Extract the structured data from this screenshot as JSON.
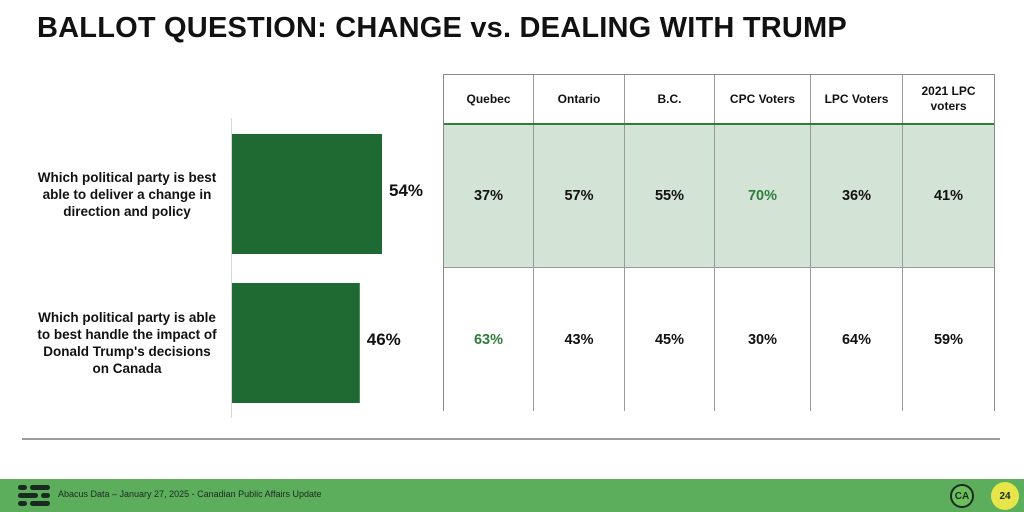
{
  "title": "BALLOT QUESTION: CHANGE vs. DEALING WITH TRUMP",
  "chart_data": {
    "type": "bar",
    "orientation": "horizontal",
    "categories": [
      "Which political party is best able to deliver a change in direction and policy",
      "Which political party is able to best handle the impact of Donald Trump's decisions on Canada"
    ],
    "values": [
      54,
      46
    ],
    "value_labels": [
      "54%",
      "46%"
    ],
    "bar_color": "#1f6a33",
    "xlim": [
      0,
      100
    ]
  },
  "table": {
    "headers": [
      "Quebec",
      "Ontario",
      "B.C.",
      "CPC Voters",
      "LPC Voters",
      "2021 LPC voters"
    ],
    "rows": [
      {
        "values": [
          "37%",
          "57%",
          "55%",
          "70%",
          "36%",
          "41%"
        ],
        "highlight_index": 3
      },
      {
        "values": [
          "63%",
          "43%",
          "45%",
          "30%",
          "64%",
          "59%"
        ],
        "highlight_index": 0
      }
    ],
    "highlight_color": "#2e7d3a",
    "shaded_row_color": "#d3e4d6"
  },
  "footer": {
    "source": "Abacus Data – January 27, 2025 - Canadian Public Affairs Update",
    "page_number": "24",
    "badge_text": "CA",
    "logo_icon": "abacus-lines-icon",
    "footer_color": "#5cae5c"
  }
}
